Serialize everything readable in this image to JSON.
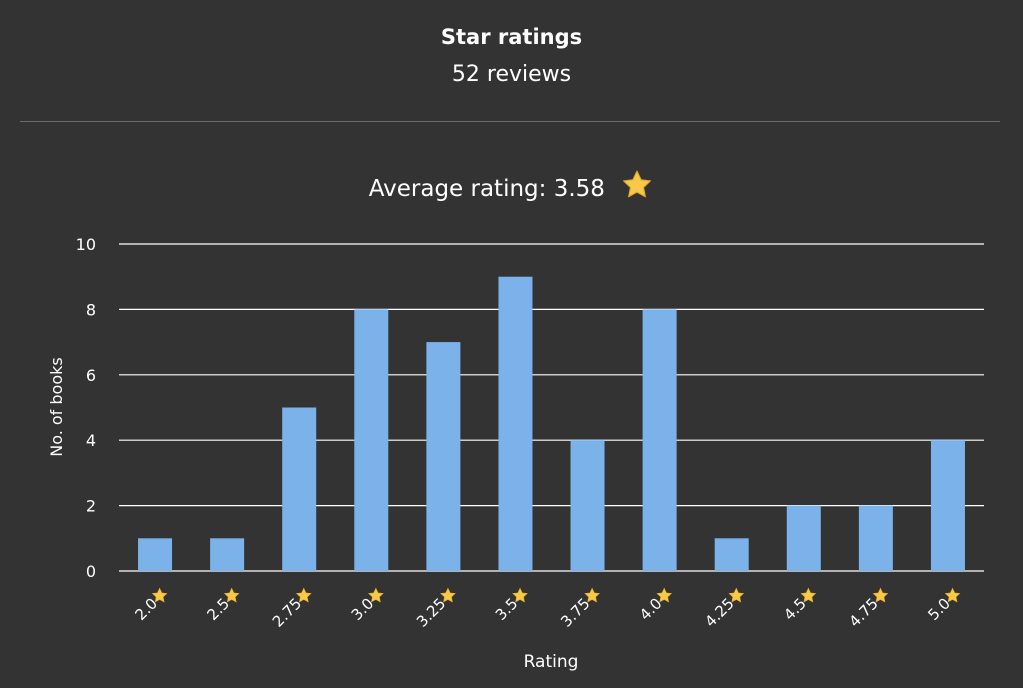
{
  "header": {
    "title": "Star ratings",
    "subtitle": "52 reviews"
  },
  "average": {
    "label": "Average rating: 3.58",
    "icon": "star-icon"
  },
  "colors": {
    "background": "#333333",
    "bar": "#7cb2ea",
    "grid": "#ffffff",
    "text": "#ffffff",
    "star": "#f7c948"
  },
  "chart_data": {
    "type": "bar",
    "categories": [
      "2.0",
      "2.5",
      "2.75",
      "3.0",
      "3.25",
      "3.5",
      "3.75",
      "4.0",
      "4.25",
      "4.5",
      "4.75",
      "5.0"
    ],
    "values": [
      1,
      1,
      5,
      8,
      7,
      9,
      4,
      8,
      1,
      2,
      2,
      4
    ],
    "xlabel": "Rating",
    "ylabel": "No. of books",
    "ylim": [
      0,
      10
    ],
    "yticks": [
      0,
      2,
      4,
      6,
      8,
      10
    ],
    "grid": true,
    "tick_icon": "star-icon"
  }
}
